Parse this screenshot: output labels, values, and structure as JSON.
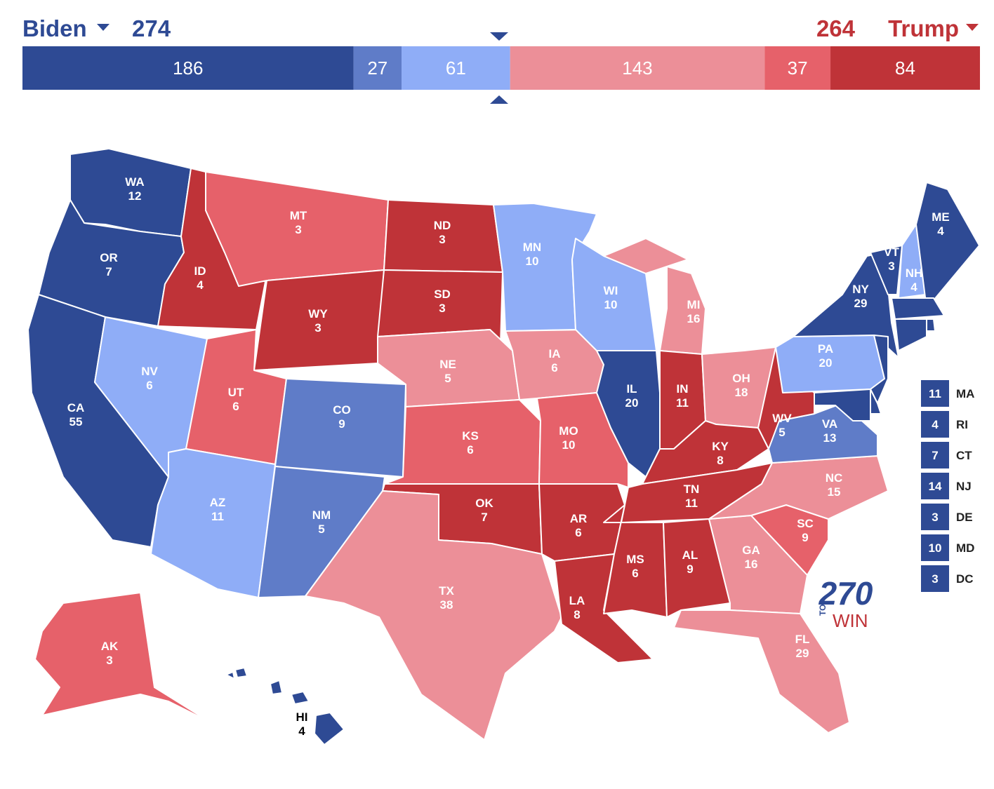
{
  "header": {
    "left": {
      "name": "Biden",
      "total": 274,
      "color": "#2e4a94"
    },
    "right": {
      "name": "Trump",
      "total": 264,
      "color": "#bf3338"
    }
  },
  "bar": {
    "segments": [
      {
        "value": 186,
        "color": "#2e4a94"
      },
      {
        "value": 27,
        "color": "#5f7cc8"
      },
      {
        "value": 61,
        "color": "#8fadf7"
      },
      {
        "value": 143,
        "color": "#ec8f98"
      },
      {
        "value": 37,
        "color": "#e6616a"
      },
      {
        "value": 84,
        "color": "#bf3338"
      }
    ]
  },
  "states": [
    {
      "abbr": "WA",
      "ev": 12,
      "color": "#2e4a94"
    },
    {
      "abbr": "OR",
      "ev": 7,
      "color": "#2e4a94"
    },
    {
      "abbr": "CA",
      "ev": 55,
      "color": "#2e4a94"
    },
    {
      "abbr": "NV",
      "ev": 6,
      "color": "#8fadf7"
    },
    {
      "abbr": "ID",
      "ev": 4,
      "color": "#bf3338"
    },
    {
      "abbr": "MT",
      "ev": 3,
      "color": "#e6616a"
    },
    {
      "abbr": "WY",
      "ev": 3,
      "color": "#bf3338"
    },
    {
      "abbr": "UT",
      "ev": 6,
      "color": "#e6616a"
    },
    {
      "abbr": "AZ",
      "ev": 11,
      "color": "#8fadf7"
    },
    {
      "abbr": "CO",
      "ev": 9,
      "color": "#5f7cc8"
    },
    {
      "abbr": "NM",
      "ev": 5,
      "color": "#5f7cc8"
    },
    {
      "abbr": "ND",
      "ev": 3,
      "color": "#bf3338"
    },
    {
      "abbr": "SD",
      "ev": 3,
      "color": "#bf3338"
    },
    {
      "abbr": "NE",
      "ev": 5,
      "color": "#ec8f98"
    },
    {
      "abbr": "KS",
      "ev": 6,
      "color": "#e6616a"
    },
    {
      "abbr": "OK",
      "ev": 7,
      "color": "#bf3338"
    },
    {
      "abbr": "TX",
      "ev": 38,
      "color": "#ec8f98"
    },
    {
      "abbr": "MN",
      "ev": 10,
      "color": "#8fadf7"
    },
    {
      "abbr": "IA",
      "ev": 6,
      "color": "#ec8f98"
    },
    {
      "abbr": "MO",
      "ev": 10,
      "color": "#e6616a"
    },
    {
      "abbr": "AR",
      "ev": 6,
      "color": "#bf3338"
    },
    {
      "abbr": "LA",
      "ev": 8,
      "color": "#bf3338"
    },
    {
      "abbr": "WI",
      "ev": 10,
      "color": "#8fadf7"
    },
    {
      "abbr": "IL",
      "ev": 20,
      "color": "#2e4a94"
    },
    {
      "abbr": "MI",
      "ev": 16,
      "color": "#ec8f98"
    },
    {
      "abbr": "IN",
      "ev": 11,
      "color": "#bf3338"
    },
    {
      "abbr": "OH",
      "ev": 18,
      "color": "#ec8f98"
    },
    {
      "abbr": "KY",
      "ev": 8,
      "color": "#bf3338"
    },
    {
      "abbr": "TN",
      "ev": 11,
      "color": "#bf3338"
    },
    {
      "abbr": "MS",
      "ev": 6,
      "color": "#bf3338"
    },
    {
      "abbr": "AL",
      "ev": 9,
      "color": "#bf3338"
    },
    {
      "abbr": "GA",
      "ev": 16,
      "color": "#ec8f98"
    },
    {
      "abbr": "FL",
      "ev": 29,
      "color": "#ec8f98"
    },
    {
      "abbr": "SC",
      "ev": 9,
      "color": "#e6616a"
    },
    {
      "abbr": "NC",
      "ev": 15,
      "color": "#ec8f98"
    },
    {
      "abbr": "VA",
      "ev": 13,
      "color": "#5f7cc8"
    },
    {
      "abbr": "WV",
      "ev": 5,
      "color": "#bf3338"
    },
    {
      "abbr": "PA",
      "ev": 20,
      "color": "#8fadf7"
    },
    {
      "abbr": "NY",
      "ev": 29,
      "color": "#2e4a94"
    },
    {
      "abbr": "VT",
      "ev": 3,
      "color": "#2e4a94"
    },
    {
      "abbr": "NH",
      "ev": 4,
      "color": "#8fadf7"
    },
    {
      "abbr": "ME",
      "ev": 4,
      "color": "#2e4a94"
    },
    {
      "abbr": "AK",
      "ev": 3,
      "color": "#e6616a"
    },
    {
      "abbr": "HI",
      "ev": 4,
      "color": "#2e4a94"
    }
  ],
  "small_states": [
    {
      "ev": 11,
      "abbr": "MA",
      "color": "#2e4a94"
    },
    {
      "ev": 4,
      "abbr": "RI",
      "color": "#2e4a94"
    },
    {
      "ev": 7,
      "abbr": "CT",
      "color": "#2e4a94"
    },
    {
      "ev": 14,
      "abbr": "NJ",
      "color": "#2e4a94"
    },
    {
      "ev": 3,
      "abbr": "DE",
      "color": "#2e4a94"
    },
    {
      "ev": 10,
      "abbr": "MD",
      "color": "#2e4a94"
    },
    {
      "ev": 3,
      "abbr": "DC",
      "color": "#2e4a94"
    }
  ],
  "logo": {
    "number": "270",
    "to": "TO",
    "win": "WIN"
  }
}
